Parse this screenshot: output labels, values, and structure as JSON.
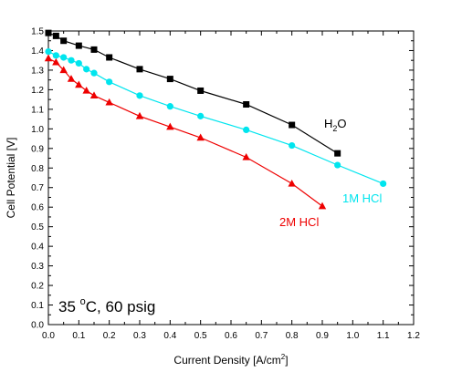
{
  "chart_data": {
    "type": "line",
    "xlabel": "Current Density [A/cm²]",
    "ylabel": "Cell Potential [V]",
    "xlim": [
      0.0,
      1.2
    ],
    "ylim": [
      0.0,
      1.5
    ],
    "x_ticks": [
      "0.0",
      "0.1",
      "0.2",
      "0.3",
      "0.4",
      "0.5",
      "0.6",
      "0.7",
      "0.8",
      "0.9",
      "1.0",
      "1.1",
      "1.2"
    ],
    "y_ticks": [
      "0.0",
      "0.1",
      "0.2",
      "0.3",
      "0.4",
      "0.5",
      "0.6",
      "0.7",
      "0.8",
      "0.9",
      "1.0",
      "1.1",
      "1.2",
      "1.3",
      "1.4",
      "1.5"
    ],
    "grid": false,
    "annotation": "35 °C, 60 psig",
    "series": [
      {
        "name": "H2O",
        "label_parts": [
          "H",
          "2",
          "O"
        ],
        "color": "#000000",
        "marker": "square",
        "x": [
          0.0,
          0.025,
          0.05,
          0.1,
          0.15,
          0.2,
          0.3,
          0.4,
          0.5,
          0.65,
          0.8,
          0.95
        ],
        "y": [
          1.49,
          1.475,
          1.45,
          1.425,
          1.405,
          1.365,
          1.305,
          1.255,
          1.195,
          1.125,
          1.02,
          0.875
        ]
      },
      {
        "name": "1M HCl",
        "color": "#00e5ee",
        "marker": "circle",
        "x": [
          0.0,
          0.025,
          0.05,
          0.075,
          0.1,
          0.125,
          0.15,
          0.2,
          0.3,
          0.4,
          0.5,
          0.65,
          0.8,
          0.95,
          1.1
        ],
        "y": [
          1.395,
          1.375,
          1.365,
          1.35,
          1.335,
          1.305,
          1.285,
          1.24,
          1.17,
          1.115,
          1.065,
          0.995,
          0.915,
          0.815,
          0.72
        ]
      },
      {
        "name": "2M HCl",
        "color": "#ee0000",
        "marker": "triangle",
        "x": [
          0.0,
          0.025,
          0.05,
          0.075,
          0.1,
          0.125,
          0.15,
          0.2,
          0.3,
          0.4,
          0.5,
          0.65,
          0.8,
          0.9
        ],
        "y": [
          1.36,
          1.34,
          1.3,
          1.255,
          1.225,
          1.195,
          1.17,
          1.135,
          1.065,
          1.01,
          0.955,
          0.855,
          0.72,
          0.605
        ]
      }
    ]
  }
}
